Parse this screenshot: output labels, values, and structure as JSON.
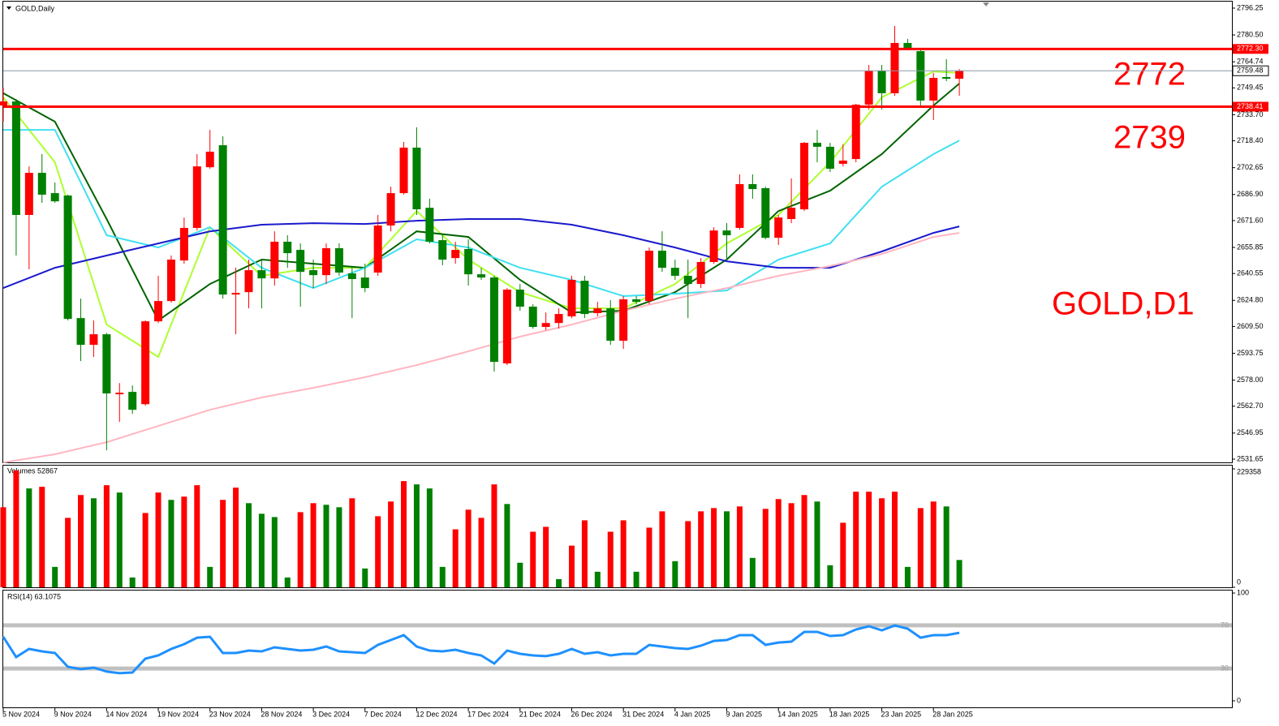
{
  "chart_data": [
    {
      "type": "candlestick",
      "title": "GOLD,Daily",
      "categories": [
        "5 Nov 2024",
        null,
        null,
        null,
        "9 Nov 2024",
        null,
        null,
        null,
        "14 Nov 2024",
        null,
        null,
        null,
        "19 Nov 2024",
        null,
        null,
        null,
        "23 Nov 2024",
        null,
        null,
        null,
        "28 Nov 2024",
        null,
        null,
        null,
        "3 Dec 2024",
        null,
        null,
        null,
        "7 Dec 2024",
        null,
        null,
        null,
        "12 Dec 2024",
        null,
        null,
        null,
        "17 Dec 2024",
        null,
        null,
        null,
        "21 Dec 2024",
        null,
        null,
        null,
        "26 Dec 2024",
        null,
        null,
        null,
        "31 Dec 2024",
        null,
        null,
        null,
        "4 Jan 2025",
        null,
        null,
        null,
        "9 Jan 2025",
        null,
        null,
        null,
        "14 Jan 2025",
        null,
        null,
        null,
        "18 Jan 2025",
        null,
        null,
        null,
        "23 Jan 2025",
        null,
        null,
        null,
        "28 Jan 2025",
        null,
        null
      ],
      "open": [
        2739.1,
        2741.5,
        2674.9,
        2699.6,
        2687.7,
        2686.3,
        2614.4,
        2598.7,
        2604.9,
        2569.7,
        2571.1,
        2563.9,
        2612.5,
        2624.4,
        2648.2,
        2667.3,
        2702.9,
        2715.8,
        2628.2,
        2629.6,
        2642.5,
        2637.7,
        2659.2,
        2654.4,
        2642.5,
        2639.6,
        2655.4,
        2640.6,
        2638.2,
        2641.1,
        2668.7,
        2687.7,
        2714.4,
        2679.1,
        2660.1,
        2649.6,
        2654.9,
        2640.1,
        2638.2,
        2587.8,
        2631.1,
        2621.1,
        2609.2,
        2611.5,
        2615.4,
        2636.3,
        2617.3,
        2620.1,
        2601.1,
        2625.4,
        2624.4,
        2653.9,
        2643.9,
        2639.2,
        2634.4,
        2647.3,
        2665.8,
        2667.3,
        2693.0,
        2690.6,
        2661.5,
        2672.5,
        2678.2,
        2717.2,
        2714.9,
        2704.9,
        2707.7,
        2739.6,
        2759.6,
        2746.3,
        2775.8,
        2771.0,
        2742.0,
        2755.8,
        2754.8
      ],
      "high": [
        2749.6,
        2742.9,
        2703.4,
        2710.6,
        2693.9,
        2686.8,
        2625.8,
        2613.0,
        2605.8,
        2576.3,
        2574.9,
        2613.0,
        2639.2,
        2651.1,
        2673.4,
        2710.6,
        2724.8,
        2721.0,
        2643.9,
        2648.7,
        2648.7,
        2665.3,
        2663.0,
        2658.2,
        2648.7,
        2658.2,
        2658.2,
        2643.9,
        2646.3,
        2674.9,
        2691.5,
        2717.7,
        2726.3,
        2684.4,
        2663.0,
        2659.2,
        2660.6,
        2643.9,
        2639.2,
        2632.0,
        2634.4,
        2622.5,
        2617.7,
        2620.1,
        2639.2,
        2639.2,
        2623.9,
        2624.9,
        2627.3,
        2627.3,
        2655.8,
        2665.3,
        2648.7,
        2648.7,
        2649.6,
        2667.7,
        2670.1,
        2698.7,
        2698.7,
        2691.5,
        2674.9,
        2696.3,
        2717.7,
        2724.8,
        2717.2,
        2716.3,
        2740.1,
        2762.9,
        2762.9,
        2785.8,
        2778.2,
        2772.4,
        2758.2,
        2766.3,
        2760.5
      ],
      "low": [
        2729.6,
        2651.1,
        2643.0,
        2682.0,
        2682.0,
        2613.0,
        2589.2,
        2591.6,
        2536.8,
        2553.5,
        2558.2,
        2563.0,
        2611.5,
        2623.4,
        2646.3,
        2665.8,
        2702.0,
        2625.8,
        2604.9,
        2620.1,
        2620.1,
        2633.5,
        2643.9,
        2621.1,
        2632.0,
        2634.4,
        2639.2,
        2614.4,
        2629.6,
        2639.2,
        2665.3,
        2686.8,
        2674.9,
        2658.2,
        2645.4,
        2646.3,
        2633.5,
        2636.8,
        2583.0,
        2586.8,
        2618.7,
        2608.2,
        2607.3,
        2608.2,
        2614.4,
        2614.4,
        2615.4,
        2598.7,
        2596.3,
        2622.5,
        2622.5,
        2641.5,
        2636.8,
        2614.4,
        2632.0,
        2646.3,
        2648.7,
        2666.3,
        2684.4,
        2660.6,
        2657.3,
        2670.1,
        2677.2,
        2705.8,
        2700.1,
        2703.4,
        2705.8,
        2736.8,
        2736.8,
        2744.8,
        2771.5,
        2739.1,
        2730.6,
        2753.4,
        2744.8
      ],
      "close": [
        2741.5,
        2674.9,
        2699.6,
        2686.8,
        2682.9,
        2613.9,
        2598.7,
        2604.9,
        2570.2,
        2570.6,
        2560.6,
        2612.5,
        2624.4,
        2648.7,
        2667.3,
        2703.4,
        2712.0,
        2628.2,
        2629.2,
        2642.5,
        2637.7,
        2659.2,
        2652.5,
        2641.5,
        2639.6,
        2655.4,
        2641.1,
        2637.3,
        2632.0,
        2668.7,
        2687.7,
        2714.4,
        2678.2,
        2659.2,
        2648.7,
        2654.4,
        2640.1,
        2638.2,
        2588.7,
        2631.1,
        2621.1,
        2609.2,
        2611.5,
        2616.8,
        2636.8,
        2616.8,
        2620.1,
        2601.1,
        2625.4,
        2623.9,
        2653.9,
        2643.9,
        2639.2,
        2634.4,
        2647.3,
        2665.8,
        2663.0,
        2693.0,
        2690.1,
        2661.5,
        2673.4,
        2679.1,
        2717.2,
        2714.9,
        2702.0,
        2706.8,
        2739.6,
        2759.6,
        2746.3,
        2775.8,
        2772.9,
        2742.0,
        2755.3,
        2754.8,
        2759.48
      ],
      "up_color": "#ff0000",
      "down_color": "#008000",
      "ma_x": [
        0,
        4,
        8,
        12,
        16,
        20,
        24,
        28,
        32,
        36,
        40,
        44,
        48,
        52,
        56,
        60,
        64,
        68,
        72,
        74
      ],
      "lines": [
        {
          "color": "#adff2f",
          "values": [
            2743.9,
            2705.8,
            2610.6,
            2591.6,
            2667.7,
            2639.2,
            2643.9,
            2643.9,
            2677.2,
            2648.7,
            2629.6,
            2620.1,
            2620.1,
            2634.4,
            2658.2,
            2674.9,
            2705.8,
            2743.9,
            2759.1,
            2758.2
          ]
        },
        {
          "color": "#006400",
          "values": [
            2746.3,
            2729.6,
            2672.5,
            2613.0,
            2634.4,
            2648.7,
            2646.3,
            2643.9,
            2665.3,
            2662.0,
            2636.8,
            2617.7,
            2618.7,
            2629.6,
            2648.7,
            2677.2,
            2689.1,
            2710.6,
            2739.1,
            2752.0
          ]
        },
        {
          "color": "#40e0f0",
          "values": [
            2724.8,
            2724.8,
            2663.0,
            2655.8,
            2667.7,
            2643.9,
            2632.0,
            2643.9,
            2660.6,
            2655.8,
            2643.9,
            2636.8,
            2627.3,
            2628.7,
            2630.6,
            2648.7,
            2658.2,
            2691.5,
            2710.6,
            2718.6
          ]
        },
        {
          "color": "#1a1acd",
          "values": [
            2632.0,
            2643.9,
            2651.1,
            2658.2,
            2665.3,
            2669.2,
            2670.1,
            2669.6,
            2671.5,
            2672.5,
            2672.5,
            2669.2,
            2663.0,
            2655.8,
            2647.7,
            2643.9,
            2643.9,
            2653.5,
            2664.4,
            2668.2
          ]
        },
        {
          "color": "#ffb6c1",
          "values": [
            2529.7,
            2534.5,
            2541.6,
            2551.1,
            2560.6,
            2567.8,
            2573.5,
            2579.7,
            2586.8,
            2594.9,
            2603.5,
            2610.6,
            2618.7,
            2625.8,
            2632.0,
            2639.2,
            2644.9,
            2652.0,
            2662.0,
            2664.4
          ]
        }
      ],
      "ylim": [
        2529.75,
        2800.05
      ],
      "yticks": [
        2796.25,
        {
          "value": 2780.5,
          "label": "2780.50"
        },
        2764.74,
        2749.45,
        {
          "value": 2733.7,
          "label": "2733.70"
        },
        {
          "value": 2718.4,
          "label": "2718.40"
        },
        2702.65,
        {
          "value": 2686.9,
          "label": "2686.90"
        },
        {
          "value": 2671.6,
          "label": "2671.60"
        },
        2655.85,
        2640.55,
        {
          "value": 2624.8,
          "label": "2624.80"
        },
        {
          "value": 2609.5,
          "label": "2609.50"
        },
        2593.75,
        {
          "value": 2578,
          "label": "2578.00"
        },
        {
          "value": 2562.7,
          "label": "2562.70"
        },
        2546.95,
        2531.65
      ],
      "levels": [
        {
          "value": 2772.3,
          "label": "2772.30"
        },
        2738.41
      ],
      "level_color": "#ff0000",
      "last_price": 2759.48,
      "annotations": [
        "2772",
        "2739",
        "GOLD,D1"
      ]
    },
    {
      "type": "bar",
      "title": "Volumes 52867",
      "values": [
        155000,
        226200,
        191400,
        194600,
        39500,
        134500,
        178700,
        172400,
        197700,
        183500,
        19000,
        143900,
        183500,
        169300,
        175600,
        197700,
        39500,
        169300,
        193000,
        162900,
        142400,
        136000,
        19000,
        145500,
        162900,
        159800,
        155000,
        172400,
        36400,
        137600,
        166100,
        205600,
        199300,
        191400,
        39500,
        112300,
        150300,
        134500,
        199300,
        161300,
        47500,
        107600,
        117100,
        15800,
        80700,
        129700,
        30100,
        107600,
        129700,
        30100,
        115500,
        147100,
        50600,
        128100,
        147100,
        153400,
        147100,
        156600,
        56900,
        151900,
        170800,
        162900,
        178700,
        166100,
        42700,
        125000,
        185100,
        185100,
        172400,
        185100,
        39500,
        153400,
        166100,
        156600,
        52867
      ],
      "colors": [
        "red",
        "red",
        "green",
        "red",
        "green",
        "red",
        "red",
        "green",
        "red",
        "green",
        "green",
        "red",
        "red",
        "green",
        "red",
        "red",
        "green",
        "red",
        "red",
        "green",
        "green",
        "green",
        "green",
        "red",
        "red",
        "green",
        "green",
        "red",
        "green",
        "red",
        "red",
        "red",
        "green",
        "green",
        "green",
        "red",
        "red",
        "red",
        "red",
        "green",
        "green",
        "red",
        "red",
        "green",
        "red",
        "red",
        "green",
        "red",
        "red",
        "green",
        "red",
        "red",
        "green",
        "red",
        "red",
        "red",
        "green",
        "red",
        "green",
        "red",
        "red",
        "red",
        "red",
        "green",
        "green",
        "red",
        "red",
        "red",
        "red",
        "red",
        "green",
        "red",
        "red",
        "green",
        "green"
      ],
      "ylim": [
        0,
        235640
      ],
      "yticks": [
        0,
        229358
      ]
    },
    {
      "type": "line",
      "title": "RSI(14) 63.1075",
      "color": "#1e90ff",
      "values": [
        59.4,
        40.6,
        48.1,
        45.9,
        44.4,
        31.6,
        29.3,
        30.8,
        27.1,
        25.6,
        26.3,
        39.1,
        42.1,
        48.1,
        52.6,
        58.6,
        59.4,
        44.4,
        44.4,
        46.6,
        45.9,
        49.6,
        48.1,
        46.6,
        47.4,
        50.4,
        45.9,
        45.1,
        44.4,
        51.9,
        56.4,
        60.9,
        50.4,
        46.6,
        45.9,
        47.4,
        44.4,
        42.1,
        34.6,
        46.6,
        43.6,
        42.1,
        41.4,
        43.6,
        48.1,
        43.6,
        45.1,
        42.1,
        43.6,
        43.6,
        51.9,
        50.4,
        48.9,
        48.1,
        51.1,
        55.6,
        56.4,
        60.9,
        60.9,
        51.9,
        54.1,
        54.9,
        63.9,
        63.9,
        60.2,
        60.9,
        66.2,
        69.2,
        65.4,
        69.9,
        66.9,
        58.6,
        60.9,
        60.9,
        63.1075
      ],
      "ylim": [
        -6.8,
        102.3
      ],
      "yticks": [
        0,
        100
      ],
      "levels": [
        70,
        30
      ]
    }
  ]
}
